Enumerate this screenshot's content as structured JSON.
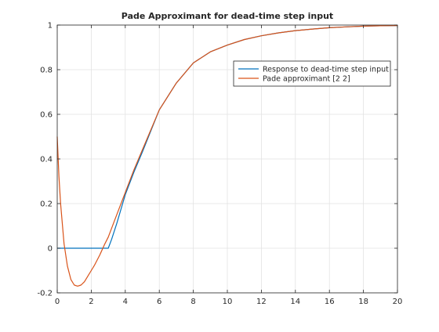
{
  "chart_data": {
    "type": "line",
    "title": "Pade Approximant for dead-time step input",
    "xlabel": "",
    "ylabel": "",
    "xlim": [
      0,
      20
    ],
    "ylim": [
      -0.2,
      1
    ],
    "xticks": [
      "0",
      "2",
      "4",
      "6",
      "8",
      "10",
      "12",
      "14",
      "16",
      "18",
      "20"
    ],
    "yticks": [
      "-0.2",
      "0",
      "0.2",
      "0.4",
      "0.6",
      "0.8",
      "1"
    ],
    "grid": true,
    "legend": {
      "position": "top-right"
    },
    "series": [
      {
        "name": "Response to dead-time step input",
        "color": "#0072bd",
        "x": [
          0,
          3.0,
          3.2,
          3.5,
          4.0,
          4.5,
          5.0,
          6.0,
          7.0,
          8.0,
          9.0,
          10.0,
          11.0,
          12.0,
          13.0,
          14.0,
          15.0,
          16.0,
          17.0,
          18.0,
          19.0,
          20.0
        ],
        "y": [
          0,
          0,
          0.04,
          0.11,
          0.24,
          0.34,
          0.43,
          0.62,
          0.74,
          0.83,
          0.88,
          0.91,
          0.935,
          0.952,
          0.965,
          0.975,
          0.982,
          0.988,
          0.992,
          0.995,
          0.997,
          0.998
        ]
      },
      {
        "name": "Pade approximant [2 2]",
        "color": "#d95319",
        "x": [
          0,
          0.1,
          0.2,
          0.4,
          0.6,
          0.8,
          1.0,
          1.2,
          1.4,
          1.6,
          1.8,
          2.0,
          2.2,
          2.5,
          2.8,
          3.0,
          3.2,
          3.5,
          4.0,
          4.5,
          5.0,
          6.0,
          7.0,
          8.0,
          9.0,
          10.0,
          11.0,
          12.0,
          13.0,
          14.0,
          15.0,
          16.0,
          17.0,
          18.0,
          19.0,
          20.0
        ],
        "y": [
          0.5,
          0.32,
          0.2,
          0.02,
          -0.08,
          -0.14,
          -0.165,
          -0.17,
          -0.165,
          -0.15,
          -0.125,
          -0.1,
          -0.075,
          -0.03,
          0.02,
          0.05,
          0.09,
          0.15,
          0.25,
          0.35,
          0.44,
          0.62,
          0.74,
          0.83,
          0.88,
          0.91,
          0.935,
          0.952,
          0.965,
          0.975,
          0.982,
          0.988,
          0.992,
          0.995,
          0.997,
          0.998
        ]
      }
    ]
  }
}
